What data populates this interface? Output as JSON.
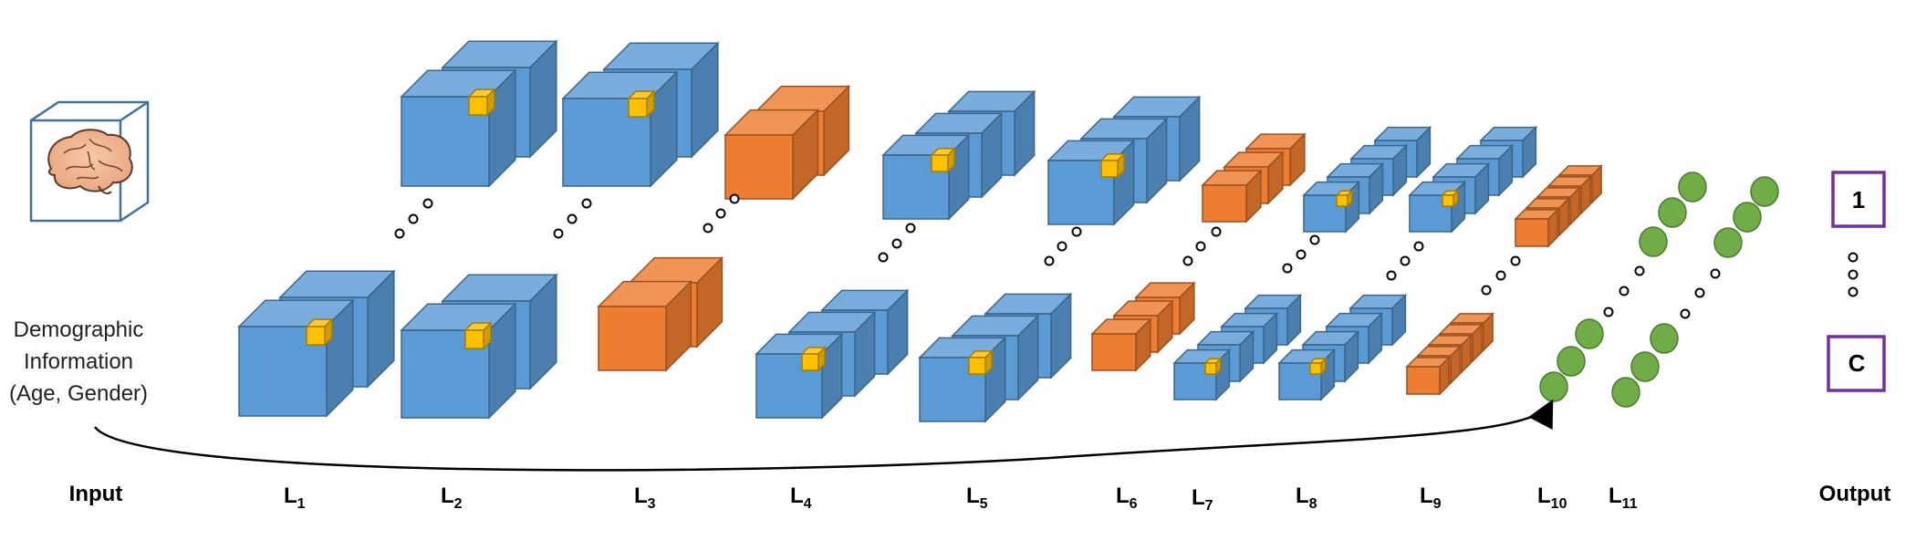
{
  "input": {
    "demographic_lines": [
      "Demographic",
      "Information",
      "(Age, Gender)"
    ]
  },
  "layers": [
    {
      "main": "Input",
      "sub": ""
    },
    {
      "main": "L",
      "sub": "1"
    },
    {
      "main": "L",
      "sub": "2"
    },
    {
      "main": "L",
      "sub": "3"
    },
    {
      "main": "L",
      "sub": "4"
    },
    {
      "main": "L",
      "sub": "5"
    },
    {
      "main": "L",
      "sub": "6"
    },
    {
      "main": "L",
      "sub": "7"
    },
    {
      "main": "L",
      "sub": "8"
    },
    {
      "main": "L",
      "sub": "9"
    },
    {
      "main": "L",
      "sub": "10"
    },
    {
      "main": "L",
      "sub": "11"
    },
    {
      "main": "Output",
      "sub": ""
    }
  ],
  "output": {
    "first_class": "1",
    "last_class": "C"
  },
  "colors": {
    "conv_block": "#5B9BD5",
    "pool_block": "#ED7D31",
    "kernel": "#FFC000",
    "dense_node": "#70AD47",
    "output_box": "#7030A0",
    "input_box": "#41719C"
  }
}
